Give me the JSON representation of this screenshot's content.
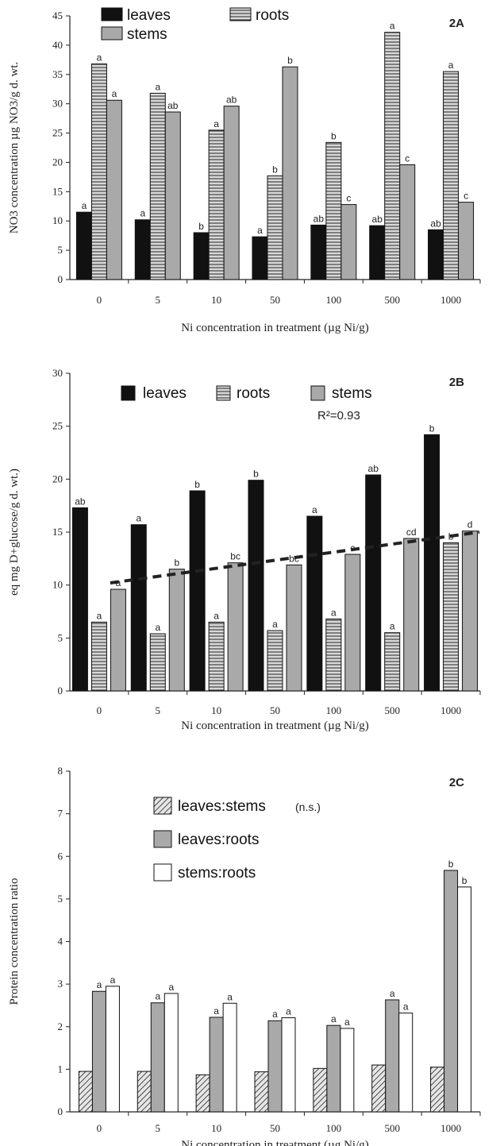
{
  "chart_data": [
    {
      "panel": "2A",
      "type": "bar",
      "categories": [
        "0",
        "5",
        "10",
        "50",
        "100",
        "500",
        "1000"
      ],
      "series": [
        {
          "name": "leaves",
          "values": [
            11.5,
            10.2,
            8.0,
            7.3,
            9.3,
            9.2,
            8.5
          ],
          "letters": [
            "a",
            "a",
            "b",
            "a",
            "ab",
            "ab",
            "ab"
          ],
          "pattern": "solid"
        },
        {
          "name": "roots",
          "values": [
            36.8,
            31.8,
            25.5,
            17.7,
            23.4,
            42.2,
            35.5
          ],
          "letters": [
            "a",
            "a",
            "a",
            "b",
            "b",
            "a",
            "a"
          ],
          "pattern": "hlines"
        },
        {
          "name": "stems",
          "values": [
            30.6,
            28.6,
            29.6,
            36.3,
            12.8,
            19.6,
            13.2
          ],
          "letters": [
            "a",
            "ab",
            "ab",
            "b",
            "c",
            "c",
            "c"
          ],
          "pattern": "gray"
        }
      ],
      "xlabel": "Ni concentration in treatment (µg Ni/g)",
      "ylabel": "NO3 concentration µg NO3/g d. wt.",
      "ylim": [
        0,
        45
      ],
      "yticks": [
        0,
        5,
        10,
        15,
        20,
        25,
        30,
        35,
        40,
        45
      ],
      "legend": "top-left"
    },
    {
      "panel": "2B",
      "type": "bar",
      "categories": [
        "0",
        "5",
        "10",
        "50",
        "100",
        "500",
        "1000"
      ],
      "series": [
        {
          "name": "leaves",
          "values": [
            17.3,
            15.7,
            18.9,
            19.9,
            16.5,
            20.4,
            24.2
          ],
          "letters": [
            "ab",
            "a",
            "b",
            "b",
            "a",
            "ab",
            "b"
          ],
          "pattern": "solid"
        },
        {
          "name": "roots",
          "values": [
            6.5,
            5.4,
            6.5,
            5.7,
            6.8,
            5.5,
            14.0
          ],
          "letters": [
            "a",
            "a",
            "a",
            "a",
            "a",
            "a",
            "b"
          ],
          "pattern": "hlines"
        },
        {
          "name": "stems",
          "values": [
            9.6,
            11.5,
            12.1,
            11.9,
            12.9,
            14.4,
            15.1
          ],
          "letters": [
            "a",
            "b",
            "bc",
            "bc",
            "c",
            "cd",
            "d"
          ],
          "pattern": "gray"
        }
      ],
      "trendline": {
        "type": "linear",
        "series": "stems",
        "from": 10.2,
        "to": 15.0,
        "r2_label": "R²=0.93"
      },
      "xlabel": "Ni concentration in treatment (µg Ni/g)",
      "ylabel": "eq mg D+glucose/g d. wt.)",
      "ylim": [
        0,
        30
      ],
      "yticks": [
        0,
        5,
        10,
        15,
        20,
        25,
        30
      ],
      "legend": "top"
    },
    {
      "panel": "2C",
      "type": "bar",
      "categories": [
        "0",
        "5",
        "10",
        "50",
        "100",
        "500",
        "1000"
      ],
      "series": [
        {
          "name": "leaves:stems",
          "note": "(n.s.)",
          "values": [
            0.95,
            0.95,
            0.87,
            0.94,
            1.02,
            1.1,
            1.05
          ],
          "letters": [
            "",
            "",
            "",
            "",
            "",
            "",
            ""
          ],
          "pattern": "diag"
        },
        {
          "name": "leaves:roots",
          "values": [
            2.83,
            2.56,
            2.22,
            2.14,
            2.03,
            2.63,
            5.67
          ],
          "letters": [
            "a",
            "a",
            "a",
            "a",
            "a",
            "a",
            "b"
          ],
          "pattern": "gray"
        },
        {
          "name": "stems:roots",
          "values": [
            2.95,
            2.78,
            2.55,
            2.21,
            1.96,
            2.32,
            5.28
          ],
          "letters": [
            "a",
            "a",
            "a",
            "a",
            "a",
            "a",
            "b"
          ],
          "pattern": "white"
        }
      ],
      "xlabel": "Ni concentration in treatment (µg Ni/g)",
      "ylabel": "Protein concentration ratio",
      "ylim": [
        0,
        8
      ],
      "yticks": [
        0,
        1,
        2,
        3,
        4,
        5,
        6,
        7,
        8
      ],
      "legend": "top-left"
    }
  ]
}
